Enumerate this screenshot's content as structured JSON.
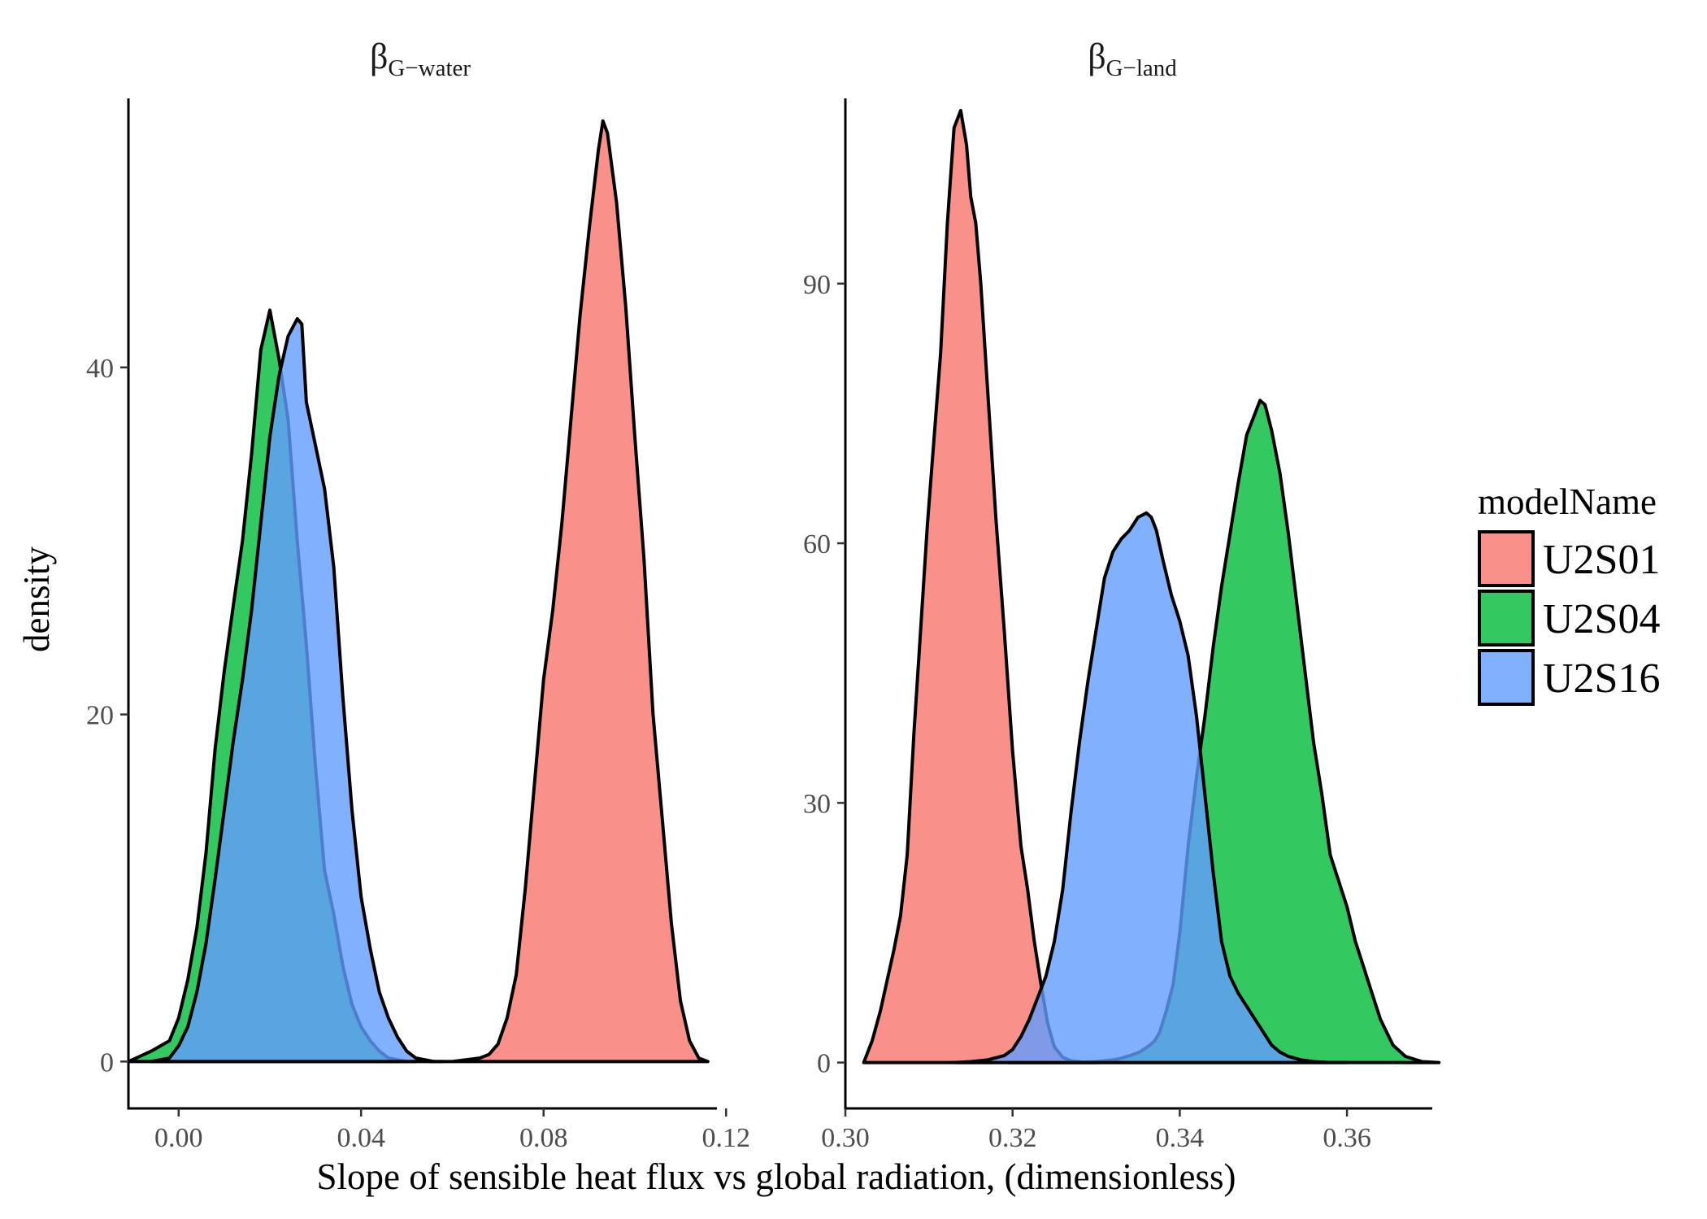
{
  "chart_data": {
    "type": "area",
    "xlabel": "Slope of sensible heat flux vs global radiation, (dimensionless)",
    "ylabel": "density",
    "legend": {
      "title": "modelName",
      "placement": "right",
      "entries": [
        {
          "label": "U2S01",
          "color": "#F8766D"
        },
        {
          "label": "U2S04",
          "color": "#00BA38"
        },
        {
          "label": "U2S16",
          "color": "#619CFF"
        }
      ]
    },
    "fill_alpha": 0.8,
    "grid": false,
    "panels": [
      {
        "strip_main": "β",
        "strip_sub": "G−water",
        "xlim": [
          -0.011,
          0.118
        ],
        "ylim": [
          -2.7,
          55.5
        ],
        "xticks": [
          0.0,
          0.04,
          0.08,
          0.12
        ],
        "xtick_labels": [
          "0.00",
          "0.04",
          "0.08",
          "0.12"
        ],
        "yticks": [
          0,
          20,
          40
        ],
        "ytick_labels": [
          "0",
          "20",
          "40"
        ],
        "series": [
          {
            "name": "U2S04",
            "color": "#00BA38",
            "x": [
              -0.011,
              -0.006,
              -0.002,
              0.0,
              0.002,
              0.004,
              0.006,
              0.008,
              0.01,
              0.012,
              0.014,
              0.016,
              0.018,
              0.02,
              0.022,
              0.024,
              0.026,
              0.028,
              0.03,
              0.032,
              0.034,
              0.036,
              0.038,
              0.04,
              0.042,
              0.044,
              0.046,
              0.048,
              0.05,
              0.052
            ],
            "y": [
              0.0,
              0.6,
              1.2,
              2.5,
              4.7,
              7.7,
              12.0,
              18.0,
              22.5,
              26.3,
              30.0,
              35.0,
              41.0,
              43.3,
              40.5,
              37.0,
              30.0,
              24.0,
              17.0,
              11.0,
              8.5,
              5.5,
              3.3,
              2.0,
              1.2,
              0.6,
              0.2,
              0.1,
              0.0,
              0.0
            ]
          },
          {
            "name": "U2S16",
            "color": "#619CFF",
            "x": [
              -0.006,
              -0.002,
              0.0,
              0.002,
              0.004,
              0.006,
              0.008,
              0.01,
              0.012,
              0.014,
              0.016,
              0.018,
              0.02,
              0.022,
              0.024,
              0.026,
              0.027,
              0.028,
              0.03,
              0.032,
              0.034,
              0.036,
              0.038,
              0.04,
              0.042,
              0.044,
              0.046,
              0.048,
              0.05,
              0.052,
              0.054,
              0.056,
              0.058
            ],
            "y": [
              0.0,
              0.2,
              0.9,
              2.0,
              4.0,
              6.8,
              10.5,
              14.5,
              18.5,
              22.0,
              26.0,
              31.0,
              36.0,
              39.5,
              41.8,
              42.8,
              42.5,
              38.0,
              35.5,
              33.0,
              28.5,
              21.0,
              14.5,
              9.5,
              6.5,
              4.0,
              2.5,
              1.4,
              0.6,
              0.2,
              0.1,
              0.0,
              0.0
            ]
          },
          {
            "name": "U2S01",
            "color": "#F8766D",
            "x": [
              0.055,
              0.06,
              0.063,
              0.066,
              0.068,
              0.07,
              0.072,
              0.074,
              0.076,
              0.078,
              0.08,
              0.082,
              0.084,
              0.086,
              0.088,
              0.09,
              0.092,
              0.093,
              0.094,
              0.096,
              0.098,
              0.1,
              0.102,
              0.104,
              0.106,
              0.108,
              0.11,
              0.112,
              0.114,
              0.116
            ],
            "y": [
              0.0,
              0.0,
              0.1,
              0.2,
              0.4,
              1.0,
              2.5,
              5.0,
              10.0,
              16.0,
              22.0,
              26.0,
              31.0,
              37.0,
              43.0,
              48.0,
              52.5,
              54.2,
              53.5,
              49.5,
              43.5,
              36.0,
              29.0,
              20.0,
              14.0,
              8.0,
              3.5,
              1.2,
              0.2,
              0.0
            ]
          }
        ]
      },
      {
        "strip_main": "β",
        "strip_sub": "G−land",
        "xlim": [
          0.3,
          0.3702
        ],
        "ylim": [
          -5.3,
          111.4
        ],
        "xticks": [
          0.3,
          0.32,
          0.34,
          0.36
        ],
        "xtick_labels": [
          "0.30",
          "0.32",
          "0.34",
          "0.36"
        ],
        "yticks": [
          0,
          30,
          60,
          90
        ],
        "ytick_labels": [
          "0",
          "30",
          "60",
          "90"
        ],
        "series": [
          {
            "name": "U2S01",
            "color": "#F8766D",
            "x": [
              0.3022,
              0.3032,
              0.3042,
              0.305,
              0.3058,
              0.3066,
              0.3074,
              0.3082,
              0.309,
              0.3098,
              0.3106,
              0.3114,
              0.3122,
              0.313,
              0.3138,
              0.3145,
              0.315,
              0.3156,
              0.3162,
              0.317,
              0.318,
              0.319,
              0.32,
              0.321,
              0.3218,
              0.3226,
              0.3234,
              0.3242,
              0.325,
              0.326,
              0.327,
              0.3285,
              0.33
            ],
            "y": [
              0.0,
              2.5,
              6.0,
              9.5,
              13.0,
              17.0,
              24.0,
              38.0,
              50.0,
              62.0,
              72.0,
              82.0,
              97.0,
              108.0,
              110.0,
              106.0,
              100.0,
              97.0,
              90.0,
              78.0,
              63.0,
              50.0,
              36.0,
              25.0,
              20.0,
              14.0,
              9.0,
              4.5,
              1.8,
              0.6,
              0.2,
              0.05,
              0.0
            ]
          },
          {
            "name": "U2S04",
            "color": "#00BA38",
            "x": [
              0.3195,
              0.323,
              0.327,
              0.33,
              0.332,
              0.333,
              0.334,
              0.3346,
              0.3352,
              0.3358,
              0.3364,
              0.337,
              0.3376,
              0.3384,
              0.3392,
              0.34,
              0.341,
              0.342,
              0.343,
              0.344,
              0.345,
              0.346,
              0.347,
              0.348,
              0.349,
              0.3496,
              0.3502,
              0.351,
              0.352,
              0.353,
              0.354,
              0.355,
              0.356,
              0.357,
              0.358,
              0.359,
              0.36,
              0.361,
              0.362,
              0.363,
              0.364,
              0.3655,
              0.367,
              0.369,
              0.371
            ],
            "y": [
              0.0,
              0.0,
              0.0,
              0.1,
              0.3,
              0.5,
              0.8,
              1.0,
              1.2,
              1.6,
              2.0,
              2.5,
              3.5,
              6.0,
              9.0,
              15.0,
              25.0,
              33.0,
              40.0,
              48.0,
              55.0,
              61.0,
              67.0,
              72.5,
              75.0,
              76.5,
              76.0,
              73.0,
              68.0,
              61.0,
              53.0,
              45.0,
              37.0,
              31.0,
              24.0,
              21.0,
              18.0,
              14.0,
              11.0,
              8.0,
              5.0,
              2.0,
              0.7,
              0.1,
              0.0
            ]
          },
          {
            "name": "U2S16",
            "color": "#619CFF",
            "x": [
              0.313,
              0.315,
              0.317,
              0.319,
              0.32,
              0.321,
              0.322,
              0.323,
              0.324,
              0.325,
              0.326,
              0.327,
              0.328,
              0.329,
              0.33,
              0.331,
              0.332,
              0.333,
              0.334,
              0.335,
              0.336,
              0.3366,
              0.3372,
              0.338,
              0.339,
              0.34,
              0.341,
              0.342,
              0.343,
              0.344,
              0.345,
              0.346,
              0.347,
              0.348,
              0.349,
              0.35,
              0.351,
              0.352,
              0.353,
              0.3545,
              0.356,
              0.358,
              0.36
            ],
            "y": [
              0.0,
              0.1,
              0.3,
              0.8,
              1.5,
              3.0,
              5.0,
              7.5,
              10.0,
              14.0,
              20.0,
              29.0,
              37.0,
              44.0,
              50.0,
              56.0,
              59.0,
              60.5,
              61.5,
              63.0,
              63.5,
              63.0,
              61.5,
              58.0,
              54.0,
              51.0,
              47.0,
              40.0,
              31.0,
              22.0,
              14.0,
              10.0,
              8.0,
              6.5,
              5.0,
              3.5,
              2.0,
              1.2,
              0.7,
              0.3,
              0.1,
              0.0,
              0.0
            ]
          }
        ]
      }
    ]
  }
}
